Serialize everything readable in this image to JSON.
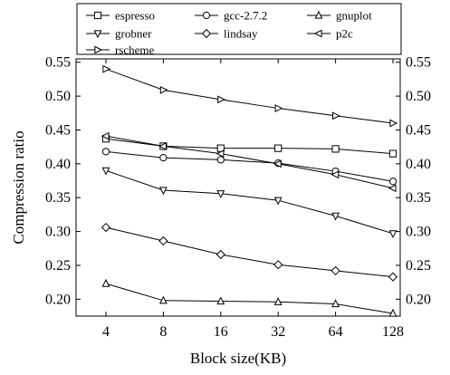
{
  "chart_data": {
    "type": "line",
    "title": "",
    "xlabel": "Block size(KB)",
    "ylabel": "Compression ratio",
    "categories": [
      "4",
      "8",
      "16",
      "32",
      "64",
      "128"
    ],
    "ylim": [
      0.175,
      0.555
    ],
    "yticks": [
      "0.20",
      "0.25",
      "0.30",
      "0.35",
      "0.40",
      "0.45",
      "0.50",
      "0.55"
    ],
    "grid": false,
    "legend_position": "top",
    "series": [
      {
        "name": "espresso",
        "marker": "square",
        "values": [
          0.437,
          0.426,
          0.423,
          0.423,
          0.422,
          0.415
        ]
      },
      {
        "name": "gcc-2.7.2",
        "marker": "circle",
        "values": [
          0.418,
          0.409,
          0.406,
          0.401,
          0.389,
          0.374
        ]
      },
      {
        "name": "gnuplot",
        "marker": "triangle-up",
        "values": [
          0.223,
          0.198,
          0.197,
          0.196,
          0.193,
          0.179
        ]
      },
      {
        "name": "grobner",
        "marker": "triangle-down",
        "values": [
          0.39,
          0.361,
          0.356,
          0.346,
          0.323,
          0.297
        ]
      },
      {
        "name": "lindsay",
        "marker": "diamond",
        "values": [
          0.306,
          0.286,
          0.266,
          0.251,
          0.242,
          0.233
        ]
      },
      {
        "name": "p2c",
        "marker": "triangle-left",
        "values": [
          0.441,
          0.426,
          0.415,
          0.4,
          0.384,
          0.364
        ]
      },
      {
        "name": "rscheme",
        "marker": "triangle-right",
        "values": [
          0.54,
          0.509,
          0.495,
          0.482,
          0.471,
          0.46
        ]
      }
    ]
  }
}
